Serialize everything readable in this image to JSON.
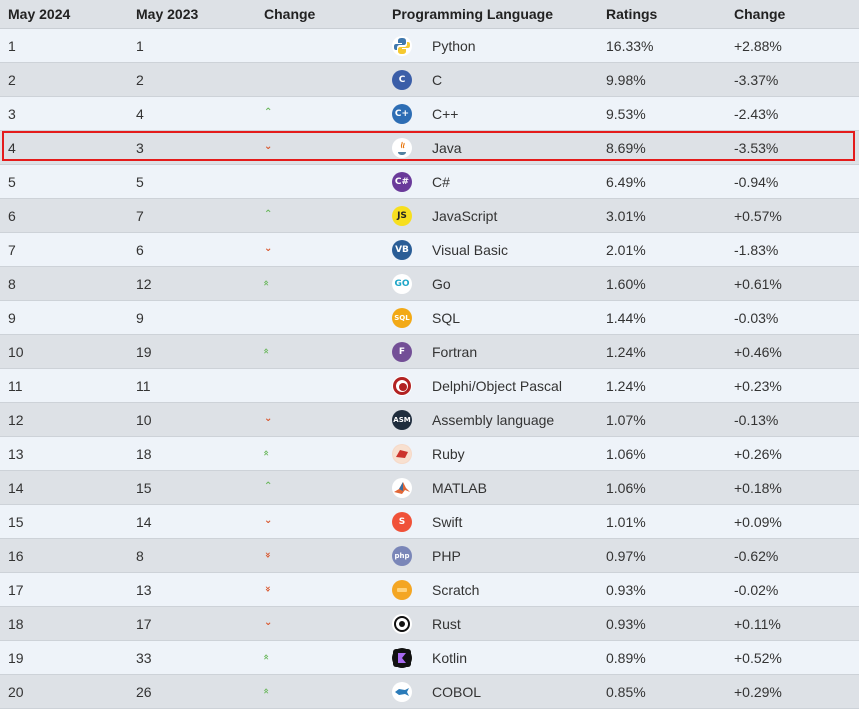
{
  "headers": [
    "May 2024",
    "May 2023",
    "Change",
    "Programming Language",
    "Ratings",
    "Change"
  ],
  "rows": [
    {
      "r2024": "1",
      "r2023": "1",
      "trend": "",
      "icon": "python-icon",
      "language": "Python",
      "rating": "16.33%",
      "change": "+2.88%"
    },
    {
      "r2024": "2",
      "r2023": "2",
      "trend": "",
      "icon": "c-icon",
      "language": "C",
      "rating": "9.98%",
      "change": "-3.37%"
    },
    {
      "r2024": "3",
      "r2023": "4",
      "trend": "up",
      "icon": "cpp-icon",
      "language": "C++",
      "rating": "9.53%",
      "change": "-2.43%"
    },
    {
      "r2024": "4",
      "r2023": "3",
      "trend": "down",
      "icon": "java-icon",
      "language": "Java",
      "rating": "8.69%",
      "change": "-3.53%"
    },
    {
      "r2024": "5",
      "r2023": "5",
      "trend": "",
      "icon": "csharp-icon",
      "language": "C#",
      "rating": "6.49%",
      "change": "-0.94%"
    },
    {
      "r2024": "6",
      "r2023": "7",
      "trend": "up",
      "icon": "javascript-icon",
      "language": "JavaScript",
      "rating": "3.01%",
      "change": "+0.57%"
    },
    {
      "r2024": "7",
      "r2023": "6",
      "trend": "down",
      "icon": "visual-basic-icon",
      "language": "Visual Basic",
      "rating": "2.01%",
      "change": "-1.83%"
    },
    {
      "r2024": "8",
      "r2023": "12",
      "trend": "up2",
      "icon": "go-icon",
      "language": "Go",
      "rating": "1.60%",
      "change": "+0.61%"
    },
    {
      "r2024": "9",
      "r2023": "9",
      "trend": "",
      "icon": "sql-icon",
      "language": "SQL",
      "rating": "1.44%",
      "change": "-0.03%"
    },
    {
      "r2024": "10",
      "r2023": "19",
      "trend": "up2",
      "icon": "fortran-icon",
      "language": "Fortran",
      "rating": "1.24%",
      "change": "+0.46%"
    },
    {
      "r2024": "11",
      "r2023": "11",
      "trend": "",
      "icon": "delphi-icon",
      "language": "Delphi/Object Pascal",
      "rating": "1.24%",
      "change": "+0.23%"
    },
    {
      "r2024": "12",
      "r2023": "10",
      "trend": "down",
      "icon": "assembly-icon",
      "language": "Assembly language",
      "rating": "1.07%",
      "change": "-0.13%"
    },
    {
      "r2024": "13",
      "r2023": "18",
      "trend": "up2",
      "icon": "ruby-icon",
      "language": "Ruby",
      "rating": "1.06%",
      "change": "+0.26%"
    },
    {
      "r2024": "14",
      "r2023": "15",
      "trend": "up",
      "icon": "matlab-icon",
      "language": "MATLAB",
      "rating": "1.06%",
      "change": "+0.18%"
    },
    {
      "r2024": "15",
      "r2023": "14",
      "trend": "down",
      "icon": "swift-icon",
      "language": "Swift",
      "rating": "1.01%",
      "change": "+0.09%"
    },
    {
      "r2024": "16",
      "r2023": "8",
      "trend": "down2",
      "icon": "php-icon",
      "language": "PHP",
      "rating": "0.97%",
      "change": "-0.62%"
    },
    {
      "r2024": "17",
      "r2023": "13",
      "trend": "down2",
      "icon": "scratch-icon",
      "language": "Scratch",
      "rating": "0.93%",
      "change": "-0.02%"
    },
    {
      "r2024": "18",
      "r2023": "17",
      "trend": "down",
      "icon": "rust-icon",
      "language": "Rust",
      "rating": "0.93%",
      "change": "+0.11%"
    },
    {
      "r2024": "19",
      "r2023": "33",
      "trend": "up2",
      "icon": "kotlin-icon",
      "language": "Kotlin",
      "rating": "0.89%",
      "change": "+0.52%"
    },
    {
      "r2024": "20",
      "r2023": "26",
      "trend": "up2",
      "icon": "cobol-icon",
      "language": "COBOL",
      "rating": "0.85%",
      "change": "+0.29%"
    }
  ],
  "highlighted_row": "4",
  "colors": {
    "trend_up": "#6cb85e",
    "trend_down": "#d9552b",
    "highlight_border": "#e41b1b",
    "row_odd": "#dde1e6",
    "row_even": "#eef3f9"
  }
}
